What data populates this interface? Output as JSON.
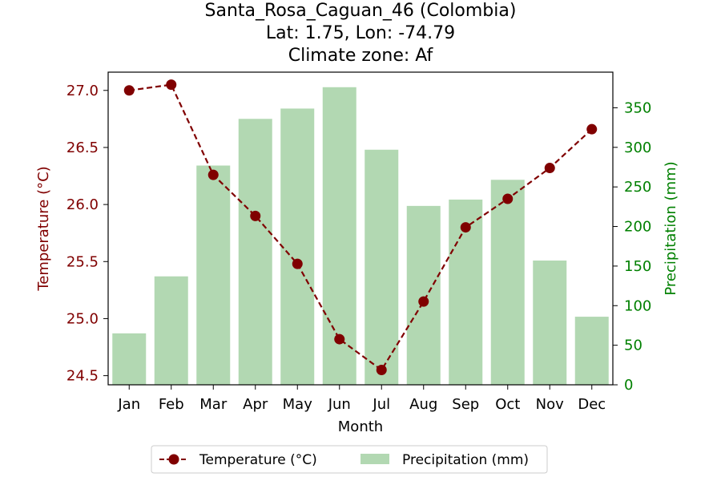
{
  "chart_data": {
    "type": "bar+line",
    "title_lines": [
      "Santa_Rosa_Caguan_46 (Colombia)",
      "Lat: 1.75, Lon: -74.79",
      "Climate zone: Af"
    ],
    "xlabel": "Month",
    "categories": [
      "Jan",
      "Feb",
      "Mar",
      "Apr",
      "May",
      "Jun",
      "Jul",
      "Aug",
      "Sep",
      "Oct",
      "Nov",
      "Dec"
    ],
    "temperature": {
      "name": "Temperature (°C)",
      "axis_label": "Temperature (°C)",
      "values": [
        27.0,
        27.05,
        26.26,
        25.9,
        25.48,
        24.82,
        24.55,
        25.15,
        25.8,
        26.05,
        26.32,
        26.66
      ],
      "ylim": [
        24.42,
        27.16
      ],
      "ticks": [
        24.5,
        25.0,
        25.5,
        26.0,
        26.5,
        27.0
      ],
      "tick_labels": [
        "24.5",
        "25.0",
        "25.5",
        "26.0",
        "26.5",
        "27.0"
      ],
      "color": "#800000",
      "style": "dashed line with circle markers"
    },
    "precipitation": {
      "name": "Precipitation (mm)",
      "axis_label": "Precipitation (mm)",
      "values": [
        65,
        137,
        277,
        336,
        349,
        376,
        297,
        226,
        234,
        259,
        157,
        86
      ],
      "ylim": [
        0,
        395
      ],
      "ticks": [
        0,
        50,
        100,
        150,
        200,
        250,
        300,
        350
      ],
      "tick_labels": [
        "0",
        "50",
        "100",
        "150",
        "200",
        "250",
        "300",
        "350"
      ],
      "color": "#b2d8b2",
      "label_color": "#008000"
    },
    "legend_position": "bottom-center",
    "grid": false
  }
}
